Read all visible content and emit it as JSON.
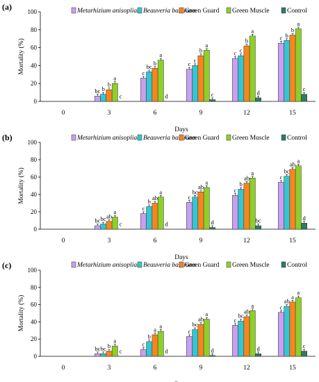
{
  "legend": [
    {
      "name": "Metarhizium anisopliae",
      "color": "#c9a0ef",
      "italic": true
    },
    {
      "name": "Beauveria bassiana",
      "color": "#35c6cf",
      "italic": true
    },
    {
      "name": "Green Guard",
      "color": "#f7851e",
      "italic": false
    },
    {
      "name": "Green Muscle",
      "color": "#8ecf2c",
      "italic": false
    },
    {
      "name": "Control",
      "color": "#2e7d5b",
      "italic": false
    }
  ],
  "chart_data": [
    {
      "type": "bar",
      "panel_label": "(a)",
      "xlabel": "Days",
      "ylabel": "Mortality (%)",
      "ylim": [
        0,
        100
      ],
      "yticks": [
        0,
        20,
        40,
        60,
        80,
        100
      ],
      "categories": [
        "0",
        "3",
        "6",
        "9",
        "12",
        "15"
      ],
      "series": [
        {
          "name": "Metarhizium anisopliae",
          "values": [
            0,
            6,
            26,
            36,
            48,
            65
          ]
        },
        {
          "name": "Beauveria bassiana",
          "values": [
            0,
            8,
            33,
            40,
            51,
            68
          ]
        },
        {
          "name": "Green Guard",
          "values": [
            0,
            13,
            37,
            51,
            62,
            74
          ]
        },
        {
          "name": "Green Muscle",
          "values": [
            0,
            20,
            46,
            57,
            73,
            81
          ]
        },
        {
          "name": "Control",
          "values": [
            0,
            0,
            0,
            2,
            4,
            8
          ]
        }
      ],
      "letters": [
        [
          "",
          "",
          "",
          "",
          ""
        ],
        [
          "bc",
          "b",
          "b",
          "a",
          "c"
        ],
        [
          "c",
          "bc",
          "b",
          "a",
          "d"
        ],
        [
          "c",
          "c",
          "b",
          "a",
          "c"
        ],
        [
          "c",
          "c",
          "b",
          "a",
          "d"
        ],
        [
          "c",
          "b",
          "b",
          "a",
          "c"
        ]
      ]
    },
    {
      "type": "bar",
      "panel_label": "(b)",
      "xlabel": "Days",
      "ylabel": "Mortality (%)",
      "ylim": [
        0,
        100
      ],
      "yticks": [
        0,
        20,
        40,
        60,
        80,
        100
      ],
      "categories": [
        "0",
        "3",
        "6",
        "9",
        "12",
        "15"
      ],
      "series": [
        {
          "name": "Metarhizium anisopliae",
          "values": [
            0,
            4,
            18,
            31,
            39,
            54
          ]
        },
        {
          "name": "Beauveria bassiana",
          "values": [
            0,
            6,
            26,
            37,
            46,
            61
          ]
        },
        {
          "name": "Green Guard",
          "values": [
            0,
            9,
            30,
            43,
            53,
            69
          ]
        },
        {
          "name": "Green Muscle",
          "values": [
            0,
            14,
            37,
            48,
            59,
            73
          ]
        },
        {
          "name": "Control",
          "values": [
            0,
            0,
            0,
            2,
            4,
            7
          ]
        }
      ],
      "letters": [
        [
          "",
          "",
          "",
          "",
          ""
        ],
        [
          "bc",
          "bc",
          "ab",
          "a",
          "c"
        ],
        [
          "c",
          "b",
          "ab",
          "a",
          "d"
        ],
        [
          "c",
          "bc",
          "ab",
          "a",
          "d"
        ],
        [
          "c",
          "b",
          "ab",
          "a",
          "bc"
        ],
        [
          "c",
          "bc",
          "ab",
          "a",
          "d"
        ]
      ]
    },
    {
      "type": "bar",
      "panel_label": "(c)",
      "xlabel": "Days",
      "ylabel": "Mortality (%)",
      "ylim": [
        0,
        100
      ],
      "yticks": [
        0,
        20,
        40,
        60,
        80,
        100
      ],
      "categories": [
        "0",
        "3",
        "6",
        "9",
        "12",
        "15"
      ],
      "series": [
        {
          "name": "Metarhizium anisopliae",
          "values": [
            0,
            3,
            8,
            23,
            36,
            51
          ]
        },
        {
          "name": "Beauveria bassiana",
          "values": [
            0,
            3,
            17,
            31,
            41,
            58
          ]
        },
        {
          "name": "Green Guard",
          "values": [
            0,
            6,
            25,
            37,
            46,
            63
          ]
        },
        {
          "name": "Green Muscle",
          "values": [
            0,
            12,
            29,
            43,
            53,
            68
          ]
        },
        {
          "name": "Control",
          "values": [
            0,
            0,
            0,
            1,
            3,
            6
          ]
        }
      ],
      "letters": [
        [
          "",
          "",
          "",
          "",
          ""
        ],
        [
          "bc",
          "bc",
          "b",
          "a",
          "c"
        ],
        [
          "c",
          "b",
          "a",
          "a",
          "d"
        ],
        [
          "c",
          "bc",
          "ab",
          "a",
          "d"
        ],
        [
          "c",
          "bc",
          "ab",
          "a",
          "d"
        ],
        [
          "c",
          "ab",
          "a",
          "a",
          "c"
        ]
      ]
    }
  ]
}
